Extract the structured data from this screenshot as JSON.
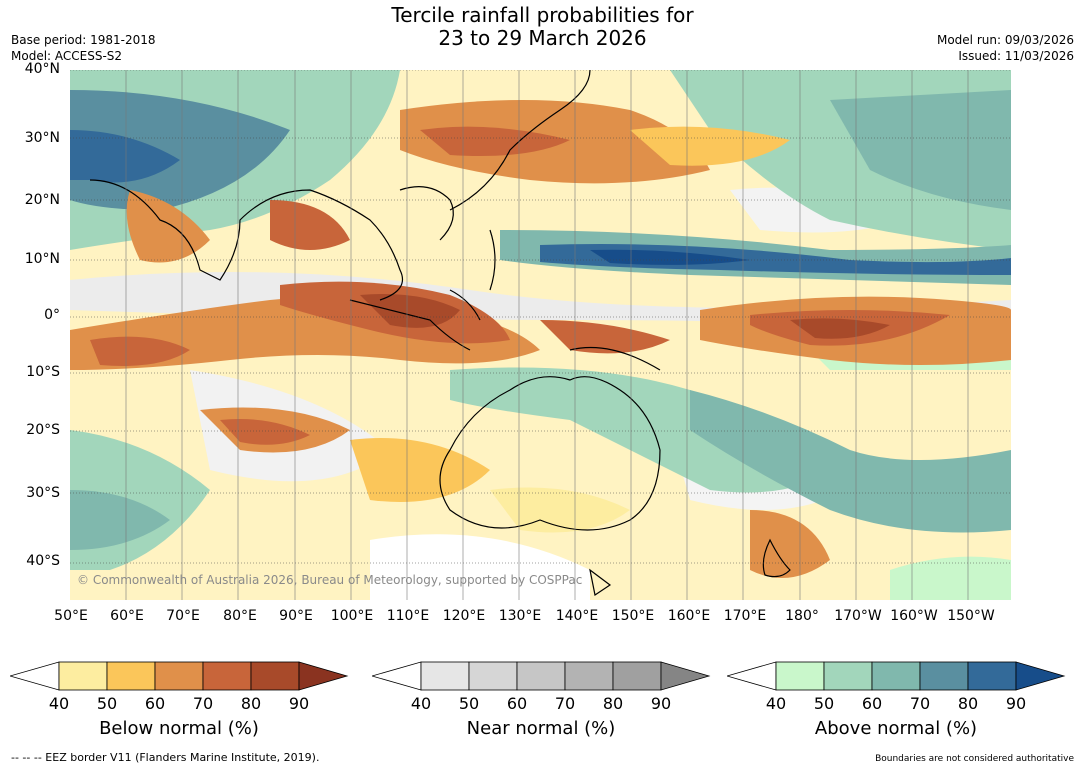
{
  "title": {
    "line1": "Tercile rainfall probabilities for",
    "line2": "23 to 29 March 2026"
  },
  "meta_left": {
    "base_period": "Base period: 1981-2018",
    "model": "Model: ACCESS-S2"
  },
  "meta_right": {
    "model_run": "Model run: 09/03/2026",
    "issued": "Issued: 11/03/2026"
  },
  "map": {
    "copyright": "© Commonwealth of Australia 2026, Bureau of Meteorology, supported by COSPPac",
    "lat_labels": [
      "40°N",
      "30°N",
      "20°N",
      "10°N",
      "0°",
      "10°S",
      "20°S",
      "30°S",
      "40°S"
    ],
    "lon_labels": [
      "50°E",
      "60°E",
      "70°E",
      "80°E",
      "90°E",
      "100°E",
      "110°E",
      "120°E",
      "130°E",
      "140°E",
      "150°E",
      "160°E",
      "170°E",
      "180°",
      "170°W",
      "160°W",
      "150°W"
    ]
  },
  "colorbars": [
    {
      "label": "Below normal (%)",
      "ticks": [
        "40",
        "50",
        "60",
        "70",
        "80",
        "90"
      ],
      "colors": [
        "#ffffff",
        "#fdeda0",
        "#fbc65a",
        "#e0904a",
        "#c8653a",
        "#a84a2a",
        "#8a3320"
      ]
    },
    {
      "label": "Near normal (%)",
      "ticks": [
        "40",
        "50",
        "60",
        "70",
        "80",
        "90"
      ],
      "colors": [
        "#ffffff",
        "#e6e6e6",
        "#d6d6d6",
        "#c6c6c6",
        "#b3b3b3",
        "#a0a0a0",
        "#858585"
      ]
    },
    {
      "label": "Above normal (%)",
      "ticks": [
        "40",
        "50",
        "60",
        "70",
        "80",
        "90"
      ],
      "colors": [
        "#ffffff",
        "#c9f7cb",
        "#a2d6bb",
        "#80b8ad",
        "#5a8fa0",
        "#336a99",
        "#174d8a"
      ]
    }
  ],
  "footer": {
    "eez_note": "--  --  -- EEZ border V11 (Flanders Marine Institute, 2019).",
    "disclaimer": "Boundaries are not considered authoritative"
  }
}
